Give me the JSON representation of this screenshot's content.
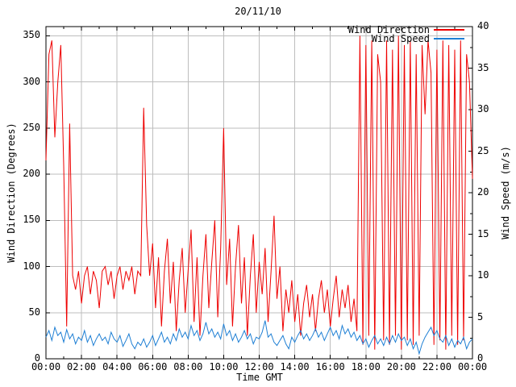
{
  "title": "20/11/10",
  "x_axis": {
    "label": "Time GMT",
    "tick_labels": [
      "00:00",
      "02:00",
      "04:00",
      "06:00",
      "08:00",
      "10:00",
      "12:00",
      "14:00",
      "16:00",
      "18:00",
      "20:00",
      "22:00",
      "00:00"
    ],
    "major_tick_minutes": 120,
    "minor_tick_minutes": 60,
    "range_minutes": [
      0,
      1440
    ]
  },
  "y_left_axis": {
    "label": "Wind Direction (Degrees)",
    "tick_values": [
      0,
      50,
      100,
      150,
      200,
      250,
      300,
      350
    ],
    "range": [
      0,
      360
    ]
  },
  "y_right_axis": {
    "label": "Wind Speed (m/s)",
    "tick_values": [
      0,
      5,
      10,
      15,
      20,
      25,
      30,
      35,
      40
    ],
    "minor_tick_step": 2.5,
    "range": [
      0,
      40
    ]
  },
  "legend": {
    "entries": [
      {
        "label": "Wind Direction",
        "color": "#ee0000"
      },
      {
        "label": "Wind Speed",
        "color": "#1e7fd4"
      }
    ]
  },
  "colors": {
    "background": "#ffffff",
    "grid": "#bdbdbd",
    "axis": "#000000",
    "wind_direction": "#ee0000",
    "wind_speed": "#1e7fd4"
  },
  "chart_data": {
    "type": "line",
    "title": "20/11/10",
    "xlabel": "Time GMT",
    "x_tick_labels": [
      "00:00",
      "02:00",
      "04:00",
      "06:00",
      "08:00",
      "10:00",
      "12:00",
      "14:00",
      "16:00",
      "18:00",
      "20:00",
      "22:00",
      "00:00"
    ],
    "x": {
      "start_minutes": 0,
      "step_minutes": 10,
      "count": 145
    },
    "grid": true,
    "legend_position": "top-right-inside",
    "series": [
      {
        "name": "Wind Direction",
        "axis": "left",
        "ylabel": "Wind Direction (Degrees)",
        "units": "degrees",
        "ylim": [
          0,
          360
        ],
        "color": "#ee0000",
        "values": [
          215,
          330,
          345,
          240,
          300,
          340,
          210,
          35,
          255,
          90,
          75,
          95,
          60,
          90,
          100,
          70,
          95,
          85,
          55,
          95,
          100,
          80,
          95,
          65,
          90,
          100,
          75,
          95,
          85,
          100,
          70,
          95,
          90,
          272,
          145,
          90,
          125,
          55,
          110,
          35,
          95,
          130,
          60,
          105,
          30,
          85,
          120,
          50,
          95,
          140,
          40,
          110,
          25,
          90,
          135,
          55,
          105,
          150,
          45,
          120,
          250,
          80,
          130,
          35,
          100,
          145,
          60,
          110,
          25,
          90,
          135,
          50,
          105,
          70,
          120,
          40,
          95,
          155,
          65,
          100,
          30,
          75,
          50,
          85,
          40,
          70,
          25,
          60,
          80,
          45,
          70,
          30,
          65,
          85,
          50,
          75,
          35,
          65,
          90,
          45,
          75,
          55,
          80,
          40,
          65,
          30,
          350,
          15,
          340,
          25,
          345,
          10,
          330,
          300,
          20,
          345,
          15,
          335,
          25,
          350,
          10,
          340,
          20,
          345,
          15,
          330,
          25,
          340,
          265,
          345,
          310,
          15,
          335,
          20,
          345,
          10,
          340,
          25,
          335,
          15,
          345,
          20,
          330,
          300,
          195
        ]
      },
      {
        "name": "Wind Speed",
        "axis": "right",
        "ylabel": "Wind Speed (m/s)",
        "units": "m/s",
        "ylim": [
          0,
          40
        ],
        "color": "#1e7fd4",
        "values": [
          2.6,
          3.4,
          2.2,
          3.8,
          2.8,
          3.2,
          2.0,
          3.5,
          2.4,
          3.0,
          1.8,
          2.6,
          2.2,
          3.4,
          2.0,
          2.8,
          1.6,
          2.4,
          3.0,
          2.2,
          2.6,
          1.8,
          3.2,
          2.4,
          2.0,
          2.8,
          1.5,
          2.2,
          3.0,
          1.8,
          1.2,
          2.0,
          1.6,
          2.4,
          1.4,
          2.0,
          2.8,
          1.6,
          2.4,
          3.2,
          2.0,
          2.6,
          1.8,
          3.0,
          2.2,
          3.6,
          2.6,
          3.2,
          2.4,
          4.0,
          2.8,
          3.4,
          2.2,
          3.0,
          4.4,
          3.0,
          3.6,
          2.6,
          3.2,
          2.4,
          4.2,
          2.8,
          3.4,
          2.2,
          3.0,
          2.0,
          2.6,
          3.4,
          2.4,
          3.0,
          1.8,
          2.6,
          2.4,
          3.2,
          4.6,
          2.6,
          3.0,
          2.0,
          1.6,
          2.2,
          2.8,
          1.8,
          1.2,
          2.6,
          2.0,
          2.8,
          3.4,
          2.4,
          3.0,
          2.2,
          2.8,
          3.6,
          2.6,
          3.2,
          2.2,
          3.0,
          3.8,
          2.8,
          3.4,
          2.4,
          4.0,
          3.0,
          3.6,
          2.6,
          3.2,
          2.2,
          2.8,
          1.8,
          2.4,
          1.4,
          2.2,
          2.8,
          1.8,
          2.4,
          1.6,
          2.6,
          1.8,
          2.8,
          2.0,
          3.0,
          2.2,
          2.6,
          1.6,
          2.4,
          1.2,
          2.0,
          0.6,
          1.8,
          2.6,
          3.2,
          3.8,
          2.8,
          3.4,
          2.4,
          2.0,
          2.8,
          1.6,
          2.4,
          1.4,
          2.2,
          1.8,
          2.6,
          1.2,
          2.0,
          2.4
        ]
      }
    ]
  }
}
